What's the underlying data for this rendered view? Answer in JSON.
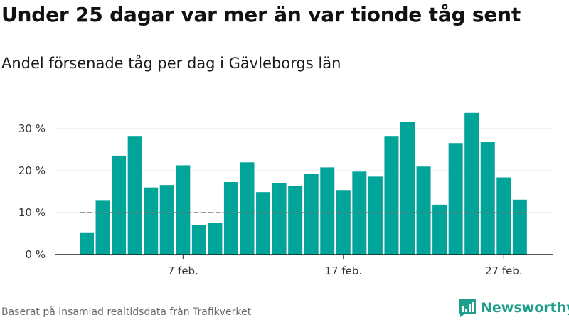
{
  "header": {
    "title": "Under 25 dagar var mer än var tionde tåg sent",
    "subtitle": "Andel försenade tåg per dag i Gävleborgs län"
  },
  "footer": {
    "source": "Baserat på insamlad realtidsdata från Trafikverket",
    "brand": "Newsworthy",
    "brand_icon": "bar-chart-chat-icon"
  },
  "colors": {
    "bar": "#00a499",
    "grid": "#dddddd",
    "axis": "#222222",
    "reference_line": "#777777",
    "brand": "#1f9e8e"
  },
  "chart_data": {
    "type": "bar",
    "title": "Under 25 dagar var mer än var tionde tåg sent",
    "subtitle": "Andel försenade tåg per dag i Gävleborgs län",
    "xlabel": "",
    "ylabel": "",
    "x_start": "1 feb.",
    "x": [
      1,
      2,
      3,
      4,
      5,
      6,
      7,
      8,
      9,
      10,
      11,
      12,
      13,
      14,
      15,
      16,
      17,
      18,
      19,
      20,
      21,
      22,
      23,
      24,
      25,
      26,
      27,
      28
    ],
    "values": [
      5.3,
      13.0,
      23.6,
      28.3,
      16.0,
      16.6,
      21.3,
      7.1,
      7.6,
      17.3,
      22.0,
      14.9,
      17.1,
      16.4,
      19.2,
      20.8,
      15.4,
      19.8,
      18.6,
      28.3,
      31.6,
      21.0,
      11.9,
      26.6,
      33.8,
      26.8,
      18.4,
      13.1
    ],
    "ylim": [
      0,
      33
    ],
    "yticks": [
      0,
      10,
      20,
      30
    ],
    "ytick_labels": [
      "0 %",
      "10 %",
      "20 %",
      "30 %"
    ],
    "xticks": [
      {
        "day": 7,
        "label": "7 feb."
      },
      {
        "day": 17,
        "label": "17 feb."
      },
      {
        "day": 27,
        "label": "27 feb."
      }
    ],
    "reference_line": {
      "value": 10,
      "style": "dashed"
    },
    "grid": true,
    "legend": "none"
  }
}
